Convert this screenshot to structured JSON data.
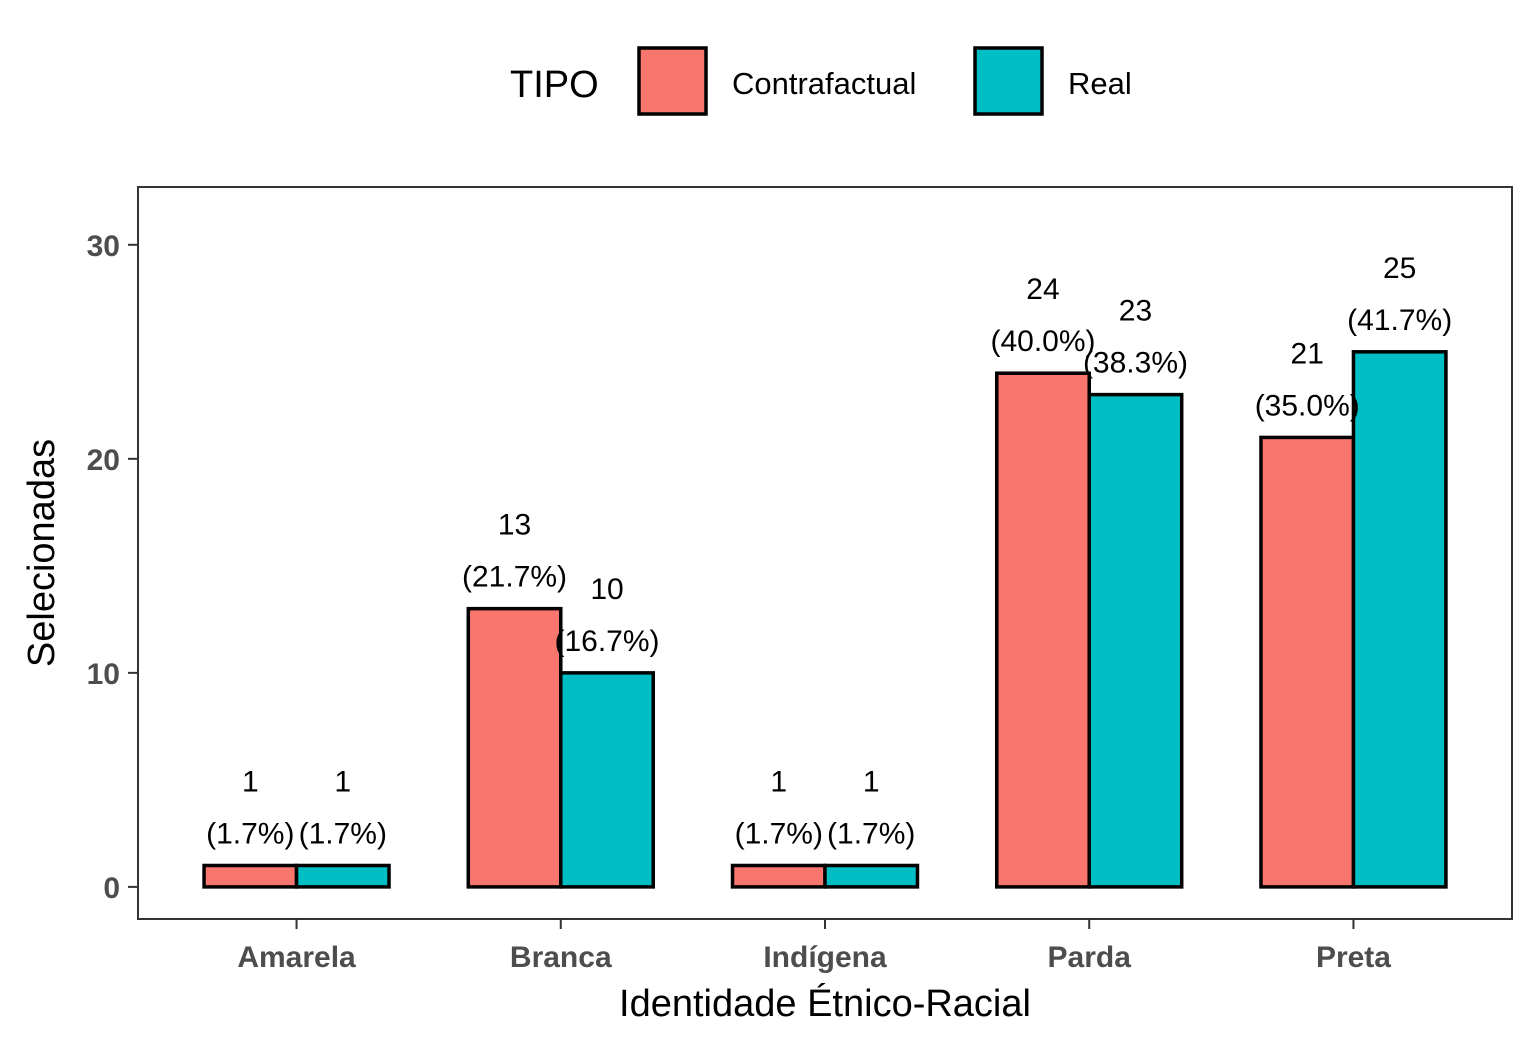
{
  "chart_data": {
    "type": "bar",
    "title": "",
    "xlabel": "Identidade Étnico-Racial",
    "ylabel": "Selecionadas",
    "ylim": [
      -1.5,
      32.7
    ],
    "yticks": [
      0,
      10,
      20,
      30
    ],
    "grid": false,
    "legend": {
      "title": "TIPO",
      "position": "top"
    },
    "categories": [
      "Amarela",
      "Branca",
      "Indígena",
      "Parda",
      "Preta"
    ],
    "series": [
      {
        "name": "Contrafactual",
        "color": "#F8766D",
        "values": [
          1,
          13,
          1,
          24,
          21
        ],
        "labels": [
          [
            "1",
            "(1.7%)"
          ],
          [
            "13",
            "(21.7%)"
          ],
          [
            "1",
            "(1.7%)"
          ],
          [
            "24",
            "(40.0%)"
          ],
          [
            "21",
            "(35.0%)"
          ]
        ]
      },
      {
        "name": "Real",
        "color": "#00BFC4",
        "values": [
          1,
          10,
          1,
          23,
          25
        ],
        "labels": [
          [
            "1",
            "(1.7%)"
          ],
          [
            "10",
            "(16.7%)"
          ],
          [
            "1",
            "(1.7%)"
          ],
          [
            "23",
            "(38.3%)"
          ],
          [
            "25",
            "(41.7%)"
          ]
        ]
      }
    ]
  }
}
